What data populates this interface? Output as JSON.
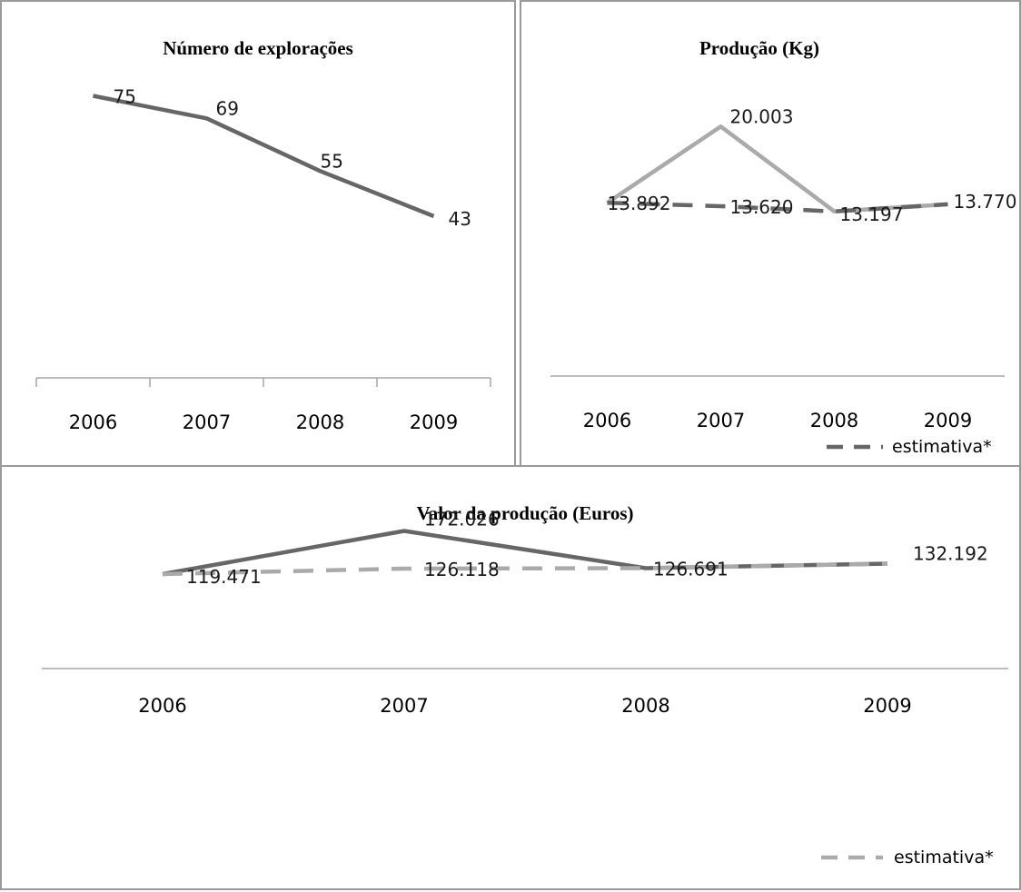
{
  "chart_data": [
    {
      "id": "exploracoes",
      "type": "line",
      "title": "Número de explorações",
      "categories": [
        "2006",
        "2007",
        "2008",
        "2009"
      ],
      "series": [
        {
          "values": [
            75,
            69,
            55,
            43
          ],
          "labels": [
            "75",
            "69",
            "55",
            "43"
          ],
          "color": "#666666",
          "dashed": false
        }
      ],
      "ylim": [
        0,
        100
      ],
      "grid": false,
      "axis_ticks": true
    },
    {
      "id": "producao",
      "type": "line",
      "title": "Produção (Kg)",
      "categories": [
        "2006",
        "2007",
        "2008",
        "2009"
      ],
      "series": [
        {
          "values": [
            13892,
            20003,
            13197,
            13770
          ],
          "labels": [
            "",
            "20.003",
            "",
            ""
          ],
          "color": "#aaaaaa",
          "dashed": false
        },
        {
          "name": "estimativa*",
          "values": [
            13892,
            13620,
            13197,
            13770
          ],
          "labels": [
            "13.892",
            "13.620",
            "13.197",
            "13.770"
          ],
          "color": "#666666",
          "dashed": true
        }
      ],
      "ylim": [
        0,
        30000
      ],
      "grid": false,
      "axis_ticks": false,
      "legend": "bottom-right"
    },
    {
      "id": "valor",
      "type": "line",
      "title": "Valor da produção (Euros)",
      "categories": [
        "2006",
        "2007",
        "2008",
        "2009"
      ],
      "series": [
        {
          "values": [
            119471,
            172026,
            126691,
            132192
          ],
          "labels": [
            "119.471",
            "172.026",
            "126.691",
            "132.192"
          ],
          "color": "#666666",
          "dashed": false
        },
        {
          "name": "estimativa*",
          "values": [
            119471,
            126118,
            126691,
            132192
          ],
          "labels": [
            "",
            "126.118",
            "",
            ""
          ],
          "color": "#aaaaaa",
          "dashed": true
        }
      ],
      "ylim": [
        0,
        250000
      ],
      "grid": false,
      "axis_ticks": false,
      "legend": "bottom-right"
    }
  ]
}
